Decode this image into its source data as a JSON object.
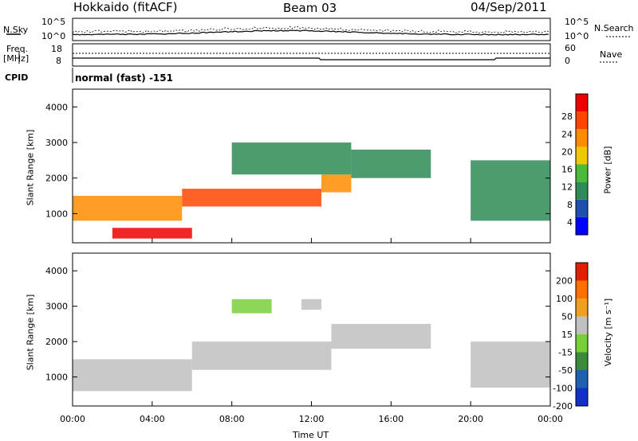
{
  "header": {
    "title": "Hokkaido (fitACF)",
    "beam": "Beam 03",
    "date": "04/Sep/2011",
    "cpid_label": "CPID",
    "cpid_value": "normal (fast) -151"
  },
  "noise_panel": {
    "left_label": "N.Sky",
    "right_label": "N.Search",
    "ticks": [
      "10^5",
      "10^0"
    ]
  },
  "freq_panel": {
    "left_label": "Freq.",
    "left_unit": "[MHz]",
    "left_ticks": [
      "18",
      "8"
    ],
    "right_label": "Nave",
    "right_ticks": [
      "60",
      "0"
    ]
  },
  "colors": {
    "power_scale": [
      "#0000ff",
      "#1e4fb0",
      "#2e8b57",
      "#4dbb3a",
      "#f0c800",
      "#ff8c00",
      "#ff4500",
      "#ee0000"
    ],
    "velocity_scale": [
      "#1030c8",
      "#2060b0",
      "#3a8a3a",
      "#79cf3a",
      "#c0c0c0",
      "#f0a020",
      "#ff7000",
      "#e02000"
    ]
  },
  "chart_data": [
    {
      "type": "heatmap",
      "name": "Power",
      "ylabel": "Slant Range [km]",
      "yticks": [
        "4000",
        "3000",
        "2000",
        "1000"
      ],
      "ylim": [
        180,
        4500
      ],
      "colorbar_label": "Power [dB]",
      "colorbar_ticks": [
        "28",
        "24",
        "20",
        "16",
        "12",
        "8",
        "4"
      ],
      "colorbar_range": [
        0,
        30
      ],
      "bands": [
        {
          "t0": 0.0,
          "t1": 5.5,
          "r0": 800,
          "r1": 1500,
          "v": 20
        },
        {
          "t0": 2.0,
          "t1": 6.0,
          "r0": 300,
          "r1": 600,
          "v": 27
        },
        {
          "t0": 5.5,
          "t1": 12.5,
          "r0": 1200,
          "r1": 1700,
          "v": 24
        },
        {
          "t0": 12.5,
          "t1": 14.0,
          "r0": 1600,
          "r1": 2100,
          "v": 20
        },
        {
          "t0": 8.0,
          "t1": 14.0,
          "r0": 2100,
          "r1": 3000,
          "v": 10
        },
        {
          "t0": 14.0,
          "t1": 18.0,
          "r0": 2000,
          "r1": 2800,
          "v": 8
        },
        {
          "t0": 20.0,
          "t1": 24.0,
          "r0": 800,
          "r1": 2500,
          "v": 10
        }
      ]
    },
    {
      "type": "heatmap",
      "name": "Velocity",
      "xlabel": "Time UT",
      "xticks": [
        "00:00",
        "04:00",
        "08:00",
        "12:00",
        "16:00",
        "20:00",
        "00:00"
      ],
      "xlim_hours": [
        0,
        24
      ],
      "ylabel": "Slant Range [km]",
      "yticks": [
        "4000",
        "3000",
        "2000",
        "1000"
      ],
      "ylim": [
        180,
        4500
      ],
      "colorbar_label": "Velocity [m s⁻¹]",
      "colorbar_ticks": [
        "200",
        "100",
        "50",
        "15",
        "-15",
        "-50",
        "-100",
        "-200"
      ],
      "colorbar_range": [
        -250,
        250
      ],
      "bands": [
        {
          "t0": 0.0,
          "t1": 6.0,
          "r0": 600,
          "r1": 1500,
          "v": 0
        },
        {
          "t0": 6.0,
          "t1": 13.0,
          "r0": 1200,
          "r1": 2000,
          "v": 0
        },
        {
          "t0": 8.0,
          "t1": 10.0,
          "r0": 2800,
          "r1": 3200,
          "v": -30
        },
        {
          "t0": 11.5,
          "t1": 12.5,
          "r0": 2900,
          "r1": 3200,
          "v": 30
        },
        {
          "t0": 13.0,
          "t1": 18.0,
          "r0": 1800,
          "r1": 2500,
          "v": 0
        },
        {
          "t0": 20.0,
          "t1": 24.0,
          "r0": 700,
          "r1": 2000,
          "v": 0
        }
      ]
    }
  ]
}
